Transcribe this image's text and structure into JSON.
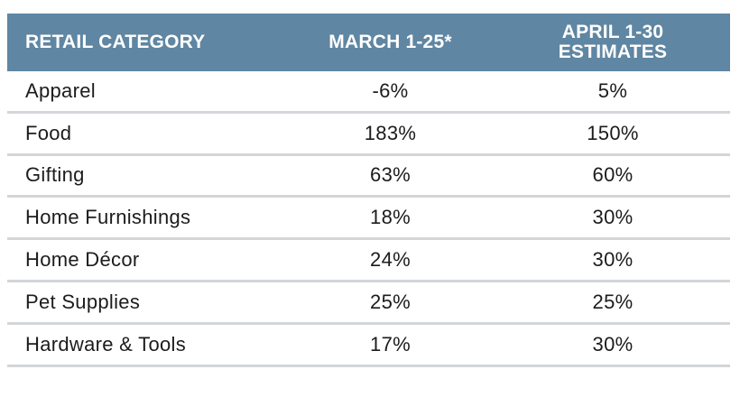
{
  "chart_data": {
    "type": "table",
    "columns": [
      "RETAIL CATEGORY",
      "MARCH 1-25*",
      "APRIL 1-30 ESTIMATES"
    ],
    "header": {
      "category": "RETAIL CATEGORY",
      "march": "MARCH 1-25*",
      "april_line1": "APRIL 1-30",
      "april_line2": "ESTIMATES"
    },
    "rows": [
      {
        "category": "Apparel",
        "march": "-6%",
        "april": "5%"
      },
      {
        "category": "Food",
        "march": "183%",
        "april": "150%"
      },
      {
        "category": "Gifting",
        "march": "63%",
        "april": "60%"
      },
      {
        "category": "Home Furnishings",
        "march": "18%",
        "april": "30%"
      },
      {
        "category": "Home Décor",
        "march": "24%",
        "april": "30%"
      },
      {
        "category": "Pet Supplies",
        "march": "25%",
        "april": "25%"
      },
      {
        "category": "Hardware & Tools",
        "march": "17%",
        "april": "30%"
      }
    ]
  },
  "colors": {
    "header_bg": "#5f86a2",
    "header_text": "#ffffff",
    "row_divider": "#d3d6d9",
    "body_text": "#1c1c1c"
  }
}
